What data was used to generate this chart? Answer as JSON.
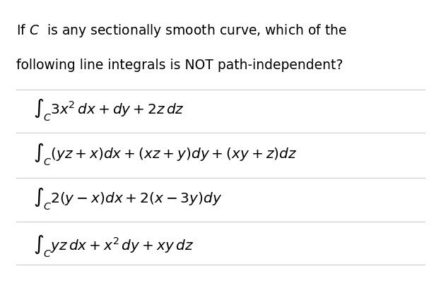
{
  "title_line1": "If $C$  is any sectionally smooth curve, which of the",
  "title_line2": "following line integrals is NOT path-independent?",
  "options": [
    "$\\int_C 3x^2\\,dx + dy + 2z\\,dz$",
    "$\\int_C (yz + x)dx + (xz + y)dy + (xy + z)dz$",
    "$\\int_C 2(y - x)dx + 2(x - 3y)dy$",
    "$\\int_C yz\\,dx + x^2\\,dy + xy\\,dz$"
  ],
  "bg_color": "#ffffff",
  "text_color": "#000000",
  "line_color": "#cccccc",
  "title_fontsize": 13.5,
  "option_fontsize": 14.5,
  "fig_width": 6.24,
  "fig_height": 4.02
}
